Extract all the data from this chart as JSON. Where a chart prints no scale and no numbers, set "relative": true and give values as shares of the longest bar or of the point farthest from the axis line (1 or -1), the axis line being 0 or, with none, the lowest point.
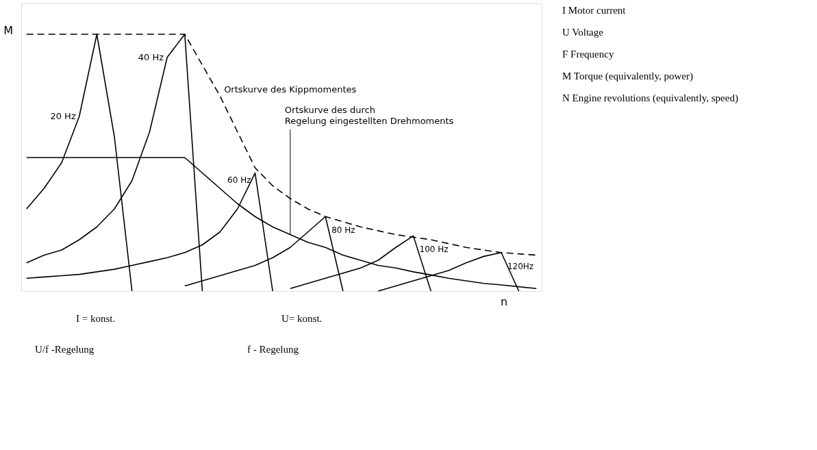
{
  "chart_data": {
    "type": "line",
    "relative": true,
    "xlabel": "n",
    "ylabel": "M",
    "marker": "none",
    "categories": [
      null,
      null,
      null,
      null,
      null,
      null,
      null,
      null,
      null,
      null,
      null,
      null,
      null,
      null,
      null,
      null,
      null,
      null,
      null,
      null,
      null,
      null,
      null,
      null,
      null,
      null,
      null,
      null,
      null,
      null
    ],
    "series": [
      {
        "name": "Ortskurve des Kippmomentes",
        "color": "#000000",
        "line_style": "dashed",
        "values": [
          1.0,
          1.0,
          1.0,
          1.0,
          1.0,
          1.0,
          1.0,
          1.0,
          1.0,
          1.0,
          0.88,
          0.76,
          0.62,
          0.48,
          0.41,
          0.36,
          0.32,
          0.29,
          0.27,
          0.25,
          0.235,
          0.22,
          0.21,
          0.2,
          0.185,
          0.17,
          0.16,
          0.15,
          0.145,
          0.14
        ]
      },
      {
        "name": "Ortskurve des durch Regelung eingestellten Drehmoments",
        "color": "#000000",
        "line_style": "solid",
        "values": [
          0.52,
          0.52,
          0.52,
          0.52,
          0.52,
          0.52,
          0.52,
          0.52,
          0.52,
          0.52,
          0.46,
          0.4,
          0.34,
          0.29,
          0.25,
          0.22,
          0.19,
          0.17,
          0.14,
          0.12,
          0.1,
          0.09,
          0.075,
          0.063,
          0.05,
          0.04,
          0.03,
          0.024,
          0.017,
          0.01
        ]
      },
      {
        "name": "20 Hz",
        "color": "#000000",
        "line_style": "solid",
        "values": [
          0.32,
          0.4,
          0.5,
          0.68,
          1.0,
          0.6,
          0,
          null,
          null,
          null,
          null,
          null,
          null,
          null,
          null,
          null,
          null,
          null,
          null,
          null,
          null,
          null,
          null,
          null,
          null,
          null,
          null,
          null,
          null,
          null
        ]
      },
      {
        "name": "40 Hz",
        "color": "#000000",
        "line_style": "solid",
        "values": [
          0.11,
          0.14,
          0.16,
          0.2,
          0.25,
          0.32,
          0.43,
          0.62,
          0.91,
          1.0,
          0,
          null,
          null,
          null,
          null,
          null,
          null,
          null,
          null,
          null,
          null,
          null,
          null,
          null,
          null,
          null,
          null,
          null,
          null,
          null
        ]
      },
      {
        "name": "60 Hz",
        "color": "#000000",
        "line_style": "solid",
        "values": [
          0.05,
          0.055,
          0.06,
          0.065,
          0.075,
          0.085,
          0.1,
          0.115,
          0.13,
          0.15,
          0.18,
          0.23,
          0.32,
          0.46,
          0,
          null,
          null,
          null,
          null,
          null,
          null,
          null,
          null,
          null,
          null,
          null,
          null,
          null,
          null,
          null
        ]
      },
      {
        "name": "80 Hz",
        "color": "#000000",
        "line_style": "solid",
        "values": [
          null,
          null,
          null,
          null,
          null,
          null,
          null,
          null,
          null,
          0.02,
          0.04,
          0.06,
          0.08,
          0.1,
          0.13,
          0.17,
          0.23,
          0.29,
          0,
          null,
          null,
          null,
          null,
          null,
          null,
          null,
          null,
          null,
          null,
          null
        ]
      },
      {
        "name": "100 Hz",
        "color": "#000000",
        "line_style": "solid",
        "values": [
          null,
          null,
          null,
          null,
          null,
          null,
          null,
          null,
          null,
          null,
          null,
          null,
          null,
          null,
          null,
          0.01,
          0.03,
          0.05,
          0.07,
          0.09,
          0.12,
          0.17,
          0.215,
          0,
          null,
          null,
          null,
          null,
          null,
          null
        ]
      },
      {
        "name": "120Hz",
        "color": "#000000",
        "line_style": "solid",
        "values": [
          null,
          null,
          null,
          null,
          null,
          null,
          null,
          null,
          null,
          null,
          null,
          null,
          null,
          null,
          null,
          null,
          null,
          null,
          null,
          null,
          0.0,
          0.02,
          0.04,
          0.06,
          0.08,
          0.11,
          0.135,
          0.15,
          0,
          null
        ]
      }
    ],
    "annotations": [
      "I = konst.",
      "U= konst.",
      "U/f -Regelung",
      "f - Regelung",
      "I    Motor current",
      "U    Voltage",
      "F    Frequency",
      "M    Torque (equivalently, power)",
      "N    Engine revolutions (equivalently, speed)"
    ]
  }
}
